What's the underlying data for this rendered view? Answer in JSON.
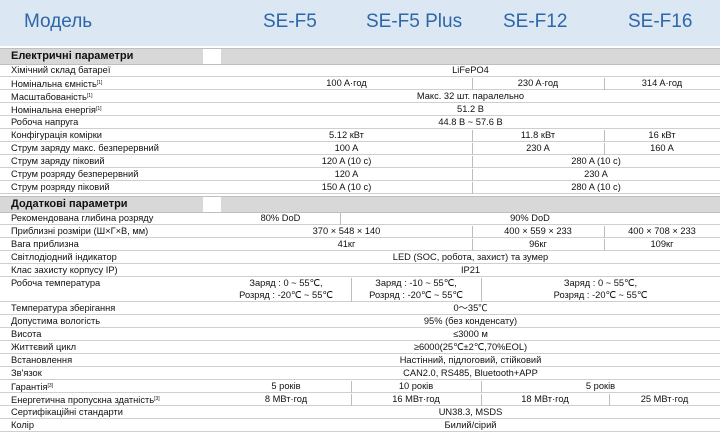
{
  "header": {
    "lead": "Модель",
    "models": [
      "SE-F5",
      "SE-F5 Plus",
      "SE-F12",
      "SE-F16"
    ]
  },
  "sections": {
    "electrical": "Електричні параметри",
    "additional": "Додаткові параметри"
  },
  "rows": [
    {
      "label": "Хімічний склад батареї",
      "cells": [
        "LiFePO4"
      ]
    },
    {
      "label": "Номінальна ємність",
      "note": "[1]",
      "cells": [
        "100 A·год",
        "230 A·год",
        "314 A·год"
      ]
    },
    {
      "label": "Масштабованість",
      "note": "[1]",
      "cells": [
        "Макс. 32 шт. паралельно"
      ]
    },
    {
      "label": "Номінальна енергія",
      "note": "[1]",
      "cells": [
        "51.2 В"
      ]
    },
    {
      "label": "Робоча напруга",
      "cells": [
        "44.8 В ~ 57.6 В"
      ]
    },
    {
      "label": "Конфігурація комірки",
      "cells": [
        "5.12 кВт",
        "11.8 кВт",
        "16 кВт"
      ]
    },
    {
      "label": "Струм заряду макс. безперервний",
      "cells": [
        "100 A",
        "230 A",
        "160 A"
      ]
    },
    {
      "label": "Струм заряду піковий",
      "cells": [
        "120 A (10 с)",
        "280 A (10 с)"
      ]
    },
    {
      "label": "Струм розряду безперервний",
      "cells": [
        "120 A",
        "230 A"
      ]
    },
    {
      "label": "Струм розряду піковий",
      "cells": [
        "150 A (10 с)",
        "280 A (10 с)"
      ]
    },
    {
      "label": "Рекомендована глибина розряду",
      "cells": [
        "80% DoD",
        "90% DoD"
      ]
    },
    {
      "label": "Приблизні розміри (Ш×Г×В, мм)",
      "cells": [
        "370 × 548 × 140",
        "400 × 559 × 233",
        "400 × 708 × 233"
      ]
    },
    {
      "label": "Вага приблизна",
      "cells": [
        "41кг",
        "96кг",
        "109кг"
      ]
    },
    {
      "label": "Світлодіодний індикатор",
      "cells": [
        "LED (SOC, робота, захист) та зумер"
      ]
    },
    {
      "label": "Клас захисту корпусу IP)",
      "cells": [
        "IP21"
      ]
    },
    {
      "label": "Робоча температура",
      "cells": [
        "Заряд : 0 ~ 55℃,",
        "Розряд : -20℃ ~ 55℃",
        "Заряд : -10 ~ 55℃,",
        "Розряд : -20℃ ~ 55℃",
        "Заряд : 0 ~ 55℃,",
        "Розряд : -20℃ ~ 55℃"
      ]
    },
    {
      "label": "Температура зберігання",
      "cells": [
        "0～35℃"
      ]
    },
    {
      "label": "Допустима вологість",
      "cells": [
        "95% (без конденсату)"
      ]
    },
    {
      "label": "Висота",
      "cells": [
        "≤3000 м"
      ]
    },
    {
      "label": "Життєвий цикл",
      "cells": [
        "≥6000(25℃±2℃,70%EOL)"
      ]
    },
    {
      "label": "Встановлення",
      "cells": [
        "Настінний, підлоговий, стійковий"
      ]
    },
    {
      "label": "Зв'язок",
      "cells": [
        "CAN2.0, RS485, Bluetooth+APP"
      ]
    },
    {
      "label": "Гарантія",
      "note": "[3]",
      "cells": [
        "5 років",
        "10 років",
        "5 років"
      ]
    },
    {
      "label": "Енергетична пропускна здатність",
      "note": "[3]",
      "cells": [
        "8 МВт·год",
        "16 МВт·год",
        "18 МВт·год",
        "25 МВт·год"
      ]
    },
    {
      "label": "Сертифікаційні стандарти",
      "cells": [
        "UN38.3, MSDS"
      ]
    },
    {
      "label": "Колір",
      "cells": [
        "Билий/сірий"
      ]
    }
  ]
}
